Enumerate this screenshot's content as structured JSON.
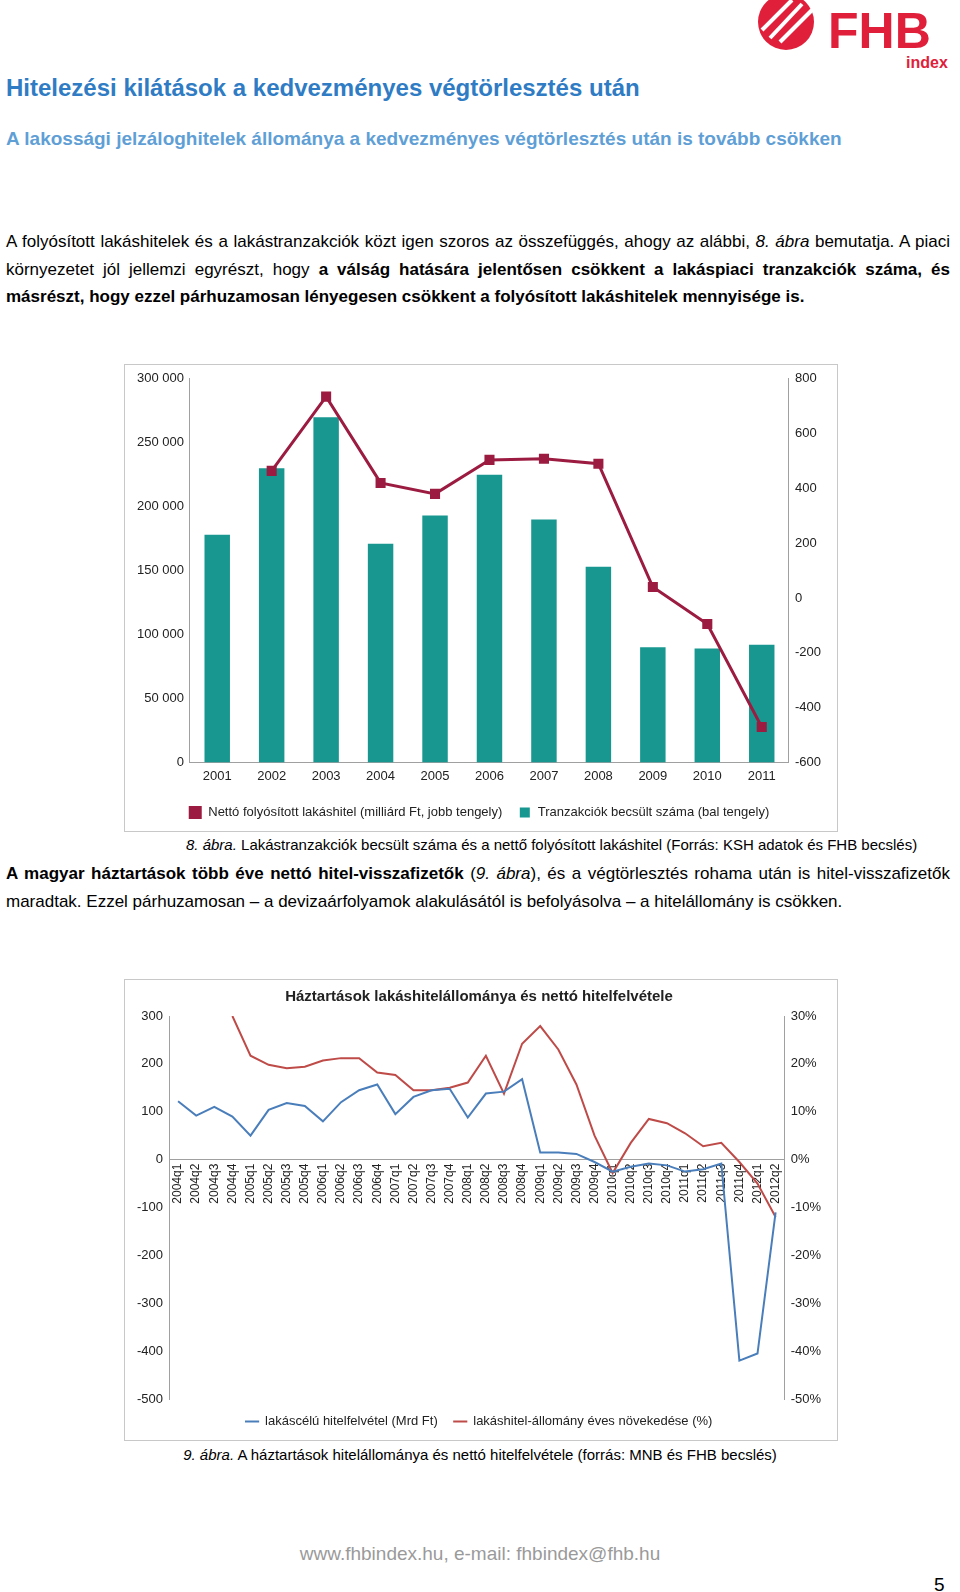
{
  "header": {
    "title": "Hitelezési kilátások a kedvezményes végtörlesztés után",
    "subtitle": "A lakossági jelzáloghitelek állománya a kedvezményes végtörlesztés után is tovább csökken",
    "logo": {
      "name": "FHB",
      "sub": "index"
    }
  },
  "paragraphs": [
    [
      {
        "text": "A folyósított lakáshitelek és a lakástranzakciók közt igen szoros az összefüggés, ahogy az alábbi, ",
        "style": "normal"
      },
      {
        "text": "8. ábra",
        "style": "italic"
      },
      {
        "text": " bemutatja. A piaci környezetet jól jellemzi egyrészt, hogy ",
        "style": "normal"
      },
      {
        "text": "a válság hatására jelentősen csökkent a lakáspiaci tranzakciók száma, és másrészt, hogy ezzel párhuzamosan lényegesen csökkent a folyósított lakáshitelek mennyisége is.",
        "style": "bold"
      }
    ],
    [
      {
        "text": "A magyar háztartások több éve nettó hitel-visszafizetők",
        "style": "bold"
      },
      {
        "text": " (",
        "style": "normal"
      },
      {
        "text": "9. ábra",
        "style": "italic"
      },
      {
        "text": "), és a végtörlesztés rohama után is hitel-visszafizetők maradtak. Ezzel párhuzamosan – a devizaárfolyamok alakulásától is befolyásolva – a hitelállomány is csökken.",
        "style": "normal"
      }
    ]
  ],
  "captions": [
    {
      "label": "8. ábra.",
      "text": " Lakástranzakciók becsült száma és a nettő folyósított lakáshitel (Forrás: KSH adatok és FHB becslés)"
    },
    {
      "label": "9. ábra.",
      "text": " A háztartások hitelállománya és nettó hitelfelvétele (forrás: MNB és FHB becslés)"
    }
  ],
  "chart_data": [
    {
      "type": "bar",
      "categories": [
        "2001",
        "2002",
        "2003",
        "2004",
        "2005",
        "2006",
        "2007",
        "2008",
        "2009",
        "2010",
        "2011"
      ],
      "series": [
        {
          "name": "Tranzakciók becsült száma (bal tengely)",
          "type": "bar",
          "color": "#17978f",
          "values": [
            178000,
            230000,
            270000,
            171000,
            193000,
            225000,
            190000,
            153000,
            90000,
            89000,
            92000
          ]
        },
        {
          "name": "Nettó folyósított lakáshitel (milliárd Ft, jobb tengely)",
          "type": "line",
          "color": "#9c1c41",
          "marker": "square",
          "axis": "y2",
          "values": [
            null,
            464,
            735,
            420,
            380,
            504,
            508,
            490,
            40,
            -95,
            -471
          ]
        }
      ],
      "ylim": [
        0,
        300000
      ],
      "yticks": [
        0,
        {
          "value": 50000,
          "label": "50 000"
        },
        {
          "value": 100000,
          "label": "100 000"
        },
        {
          "value": 150000,
          "label": "150 000"
        },
        {
          "value": 200000,
          "label": "200 000"
        },
        {
          "value": 250000,
          "label": "250 000"
        },
        {
          "value": 300000,
          "label": "300 000"
        }
      ],
      "y2lim": [
        -600,
        800
      ],
      "y2ticks": [
        -600,
        -400,
        -200,
        0,
        200,
        400,
        600,
        800
      ],
      "grid": false,
      "legend": "bottom"
    },
    {
      "type": "line",
      "title": "Háztartások lakáshitelállománya és nettó hitelfelvétele",
      "categories": [
        "2004q1",
        "2004q2",
        "2004q3",
        "2004q4",
        "2005q1",
        "2005q2",
        "2005q3",
        "2005q4",
        "2006q1",
        "2006q2",
        "2006q3",
        "2006q4",
        "2007q1",
        "2007q2",
        "2007q3",
        "2007q4",
        "2008q1",
        "2008q2",
        "2008q3",
        "2008q4",
        "2009q1",
        "2009q2",
        "2009q3",
        "2009q4",
        "2010q1",
        "2010q2",
        "2010q3",
        "2010q4",
        "2011q1",
        "2011q2",
        "2011q3",
        "2011q4",
        "2012q1",
        "2012q2"
      ],
      "series": [
        {
          "name": "lakáscélú hitelfelvétel (Mrd Ft)",
          "color": "#4a7ebb",
          "marker": "none",
          "values": [
            122,
            92,
            110,
            90,
            50,
            104,
            118,
            112,
            80,
            120,
            145,
            157,
            95,
            131,
            145,
            148,
            88,
            138,
            142,
            168,
            15,
            15,
            12,
            -5,
            -25,
            -15,
            -8,
            -12,
            -25,
            -20,
            -8,
            -420,
            -405,
            -110
          ]
        },
        {
          "name": "lakáshitel-állomány éves növekedése (%)",
          "color": "#be4b48",
          "marker": "none",
          "axis": "y2",
          "values": [
            null,
            null,
            null,
            30,
            21.7,
            19.8,
            19.1,
            19.4,
            20.7,
            21.2,
            21.2,
            18.2,
            17.7,
            14.5,
            14.5,
            15,
            16.1,
            21.7,
            13.8,
            24.2,
            27.9,
            23,
            15.7,
            5,
            -2.8,
            3.5,
            8.5,
            7.6,
            5.5,
            2.8,
            3.5,
            -0.5,
            -5,
            -12
          ]
        }
      ],
      "ylim": [
        -500,
        300
      ],
      "yticks": [
        -500,
        -400,
        -300,
        -200,
        -100,
        0,
        100,
        200,
        300
      ],
      "y2lim": [
        -50,
        30
      ],
      "y2ticks": [
        {
          "value": -50,
          "label": "-50%"
        },
        {
          "value": -40,
          "label": "-40%"
        },
        {
          "value": -30,
          "label": "-30%"
        },
        {
          "value": -20,
          "label": "-20%"
        },
        {
          "value": -10,
          "label": "-10%"
        },
        {
          "value": 0,
          "label": "0%"
        },
        {
          "value": 10,
          "label": "10%"
        },
        {
          "value": 20,
          "label": "20%"
        },
        {
          "value": 30,
          "label": "30%"
        }
      ],
      "grid": false,
      "legend": "bottom"
    }
  ],
  "footer": {
    "contact": "www.fhbindex.hu, e-mail: fhbindex@fhb.hu",
    "page": 5
  }
}
